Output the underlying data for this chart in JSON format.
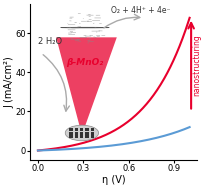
{
  "title": "",
  "xlabel": "η (V)",
  "ylabel": "J (mA/cm²)",
  "xlim": [
    -0.05,
    1.05
  ],
  "ylim": [
    -5,
    75
  ],
  "xticks": [
    0,
    0.3,
    0.6,
    0.9
  ],
  "yticks": [
    0,
    20,
    40,
    60
  ],
  "bg_color": "#ffffff",
  "red_curve_color": "#e8002d",
  "blue_curve_color": "#5b9bd5",
  "text_2h2o": "2 H₂O",
  "text_o2": "O₂ + 4H⁺ + 4e⁻",
  "text_beta": "β-MnO₂",
  "text_nano": "nanostructuring",
  "cone_color": "#e8002d",
  "cone_alpha": 0.75,
  "figsize": [
    2.06,
    1.89
  ],
  "dpi": 100
}
